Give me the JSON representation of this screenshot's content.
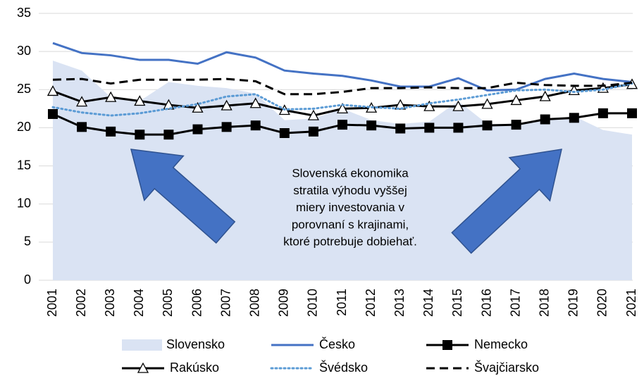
{
  "chart_data": {
    "type": "line",
    "x": [
      "2001",
      "2002",
      "2003",
      "2004",
      "2005",
      "2006",
      "2007",
      "2008",
      "2009",
      "2010",
      "2011",
      "2012",
      "2013",
      "2014",
      "2015",
      "2016",
      "2017",
      "2018",
      "2019",
      "2020",
      "2021"
    ],
    "ylim": [
      0,
      35
    ],
    "yticks": [
      0,
      5,
      10,
      15,
      20,
      25,
      30,
      35
    ],
    "grid": true,
    "annotation": [
      "Slovenská ekonomika",
      "stratila výhodu vyššej",
      "miery investovania v",
      "porovnaní s krajinami,",
      "ktoré potrebuje dobiehať."
    ],
    "series": [
      {
        "name": "Slovensko",
        "color": "#dae3f3",
        "style": "area",
        "values": [
          28.8,
          27.5,
          24.0,
          23.5,
          26.0,
          25.5,
          25.2,
          24.5,
          21.0,
          21.2,
          22.5,
          21.0,
          20.5,
          20.8,
          23.5,
          20.5,
          20.5,
          21.0,
          21.5,
          19.7,
          19.1
        ]
      },
      {
        "name": "Česko",
        "color": "#4472c4",
        "style": "solid",
        "values": [
          31.1,
          29.8,
          29.5,
          28.9,
          28.9,
          28.4,
          29.9,
          29.2,
          27.5,
          27.1,
          26.8,
          26.2,
          25.4,
          25.4,
          26.5,
          24.9,
          25.0,
          26.4,
          27.1,
          26.4,
          26.0
        ]
      },
      {
        "name": "Nemecko",
        "color": "#000000",
        "style": "solid",
        "marker": "square",
        "values": [
          21.8,
          20.1,
          19.5,
          19.1,
          19.1,
          19.8,
          20.1,
          20.3,
          19.3,
          19.5,
          20.4,
          20.3,
          19.9,
          20.0,
          20.0,
          20.3,
          20.4,
          21.1,
          21.3,
          21.9,
          21.9
        ]
      },
      {
        "name": "Rakúsko",
        "color": "#000000",
        "style": "solid",
        "marker": "triangle",
        "values": [
          24.8,
          23.4,
          24.0,
          23.5,
          23.0,
          22.6,
          22.9,
          23.2,
          22.3,
          21.6,
          22.5,
          22.6,
          23.0,
          22.8,
          22.8,
          23.1,
          23.6,
          24.1,
          24.9,
          25.2,
          25.7
        ]
      },
      {
        "name": "Švédsko",
        "color": "#5b9bd5",
        "style": "dotted",
        "values": [
          22.7,
          22.0,
          21.6,
          21.9,
          22.5,
          23.1,
          24.1,
          24.4,
          22.4,
          22.5,
          23.0,
          22.7,
          22.5,
          23.2,
          23.7,
          24.3,
          24.9,
          25.0,
          24.7,
          25.0,
          25.8
        ]
      },
      {
        "name": "Švajčiarsko",
        "color": "#000000",
        "style": "dashed",
        "values": [
          26.3,
          26.4,
          25.8,
          26.3,
          26.3,
          26.3,
          26.4,
          26.1,
          24.4,
          24.4,
          24.7,
          25.2,
          25.2,
          25.3,
          25.2,
          25.2,
          25.9,
          25.6,
          25.5,
          25.5,
          25.9
        ]
      }
    ]
  }
}
